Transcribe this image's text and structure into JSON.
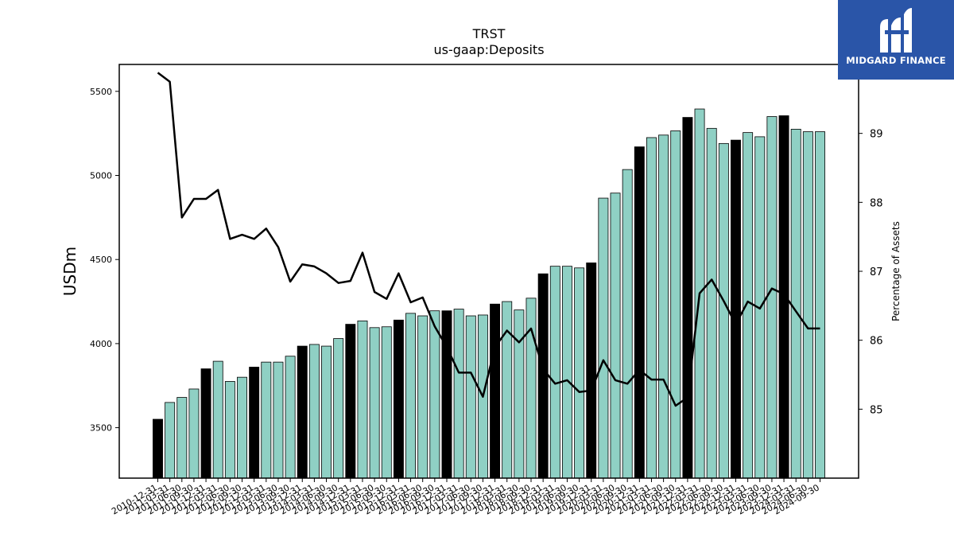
{
  "chart_data": {
    "type": "bar+line",
    "title": "TRST",
    "subtitle": "us-gaap:Deposits",
    "ylabel": "USDm",
    "y2label": "Percentage of Assets",
    "ylim": [
      3200,
      5660
    ],
    "y2lim": [
      84.0,
      90.0
    ],
    "yticks": [
      3500,
      4000,
      4500,
      5000,
      5500
    ],
    "y2ticks": [
      85,
      86,
      87,
      88,
      89
    ],
    "categories": [
      "2010-12-31",
      "2011-03-31",
      "2011-06-30",
      "2011-09-30",
      "2011-12-31",
      "2012-03-31",
      "2012-06-30",
      "2012-09-30",
      "2012-12-31",
      "2013-03-31",
      "2013-06-30",
      "2013-09-30",
      "2013-12-31",
      "2014-03-31",
      "2014-06-30",
      "2014-09-30",
      "2014-12-31",
      "2015-03-31",
      "2015-06-30",
      "2015-09-30",
      "2015-12-31",
      "2016-03-31",
      "2016-06-30",
      "2016-09-30",
      "2016-12-31",
      "2017-03-31",
      "2017-06-30",
      "2017-09-30",
      "2017-12-31",
      "2018-03-31",
      "2018-06-30",
      "2018-09-30",
      "2018-12-31",
      "2019-03-31",
      "2019-06-30",
      "2019-09-30",
      "2019-12-31",
      "2020-03-31",
      "2020-06-30",
      "2020-09-30",
      "2020-12-31",
      "2021-03-31",
      "2021-06-30",
      "2021-09-30",
      "2021-12-31",
      "2022-03-31",
      "2022-06-30",
      "2022-09-30",
      "2022-12-31",
      "2023-03-31",
      "2023-06-30",
      "2023-09-30",
      "2023-12-31",
      "2024-03-31",
      "2024-06-30",
      "2024-09-30"
    ],
    "series": [
      {
        "kind": "bar",
        "values": [
          3550,
          3650,
          3680,
          3730,
          3850,
          3895,
          3775,
          3800,
          3860,
          3890,
          3890,
          3925,
          3985,
          3995,
          3985,
          4030,
          4115,
          4135,
          4095,
          4100,
          4140,
          4180,
          4165,
          4195,
          4195,
          4205,
          4165,
          4170,
          4235,
          4250,
          4200,
          4270,
          4415,
          4460,
          4460,
          4450,
          4480,
          4865,
          4895,
          5035,
          5170,
          5225,
          5240,
          5265,
          5345,
          5395,
          5280,
          5190,
          5210,
          5255,
          5230,
          5350,
          5355,
          5275,
          5260,
          5260
        ],
        "highlight_color": "#000000",
        "color": "#8fd0c4",
        "highlight_every": "year-end (Dec 31)"
      },
      {
        "kind": "line",
        "axis": "right",
        "values": [
          89.88,
          89.75,
          87.78,
          88.05,
          88.05,
          88.18,
          87.47,
          87.53,
          87.47,
          87.62,
          87.35,
          86.85,
          87.1,
          87.07,
          86.97,
          86.83,
          86.86,
          87.27,
          86.7,
          86.6,
          86.97,
          86.55,
          86.62,
          86.2,
          85.9,
          85.53,
          85.53,
          85.18,
          85.9,
          86.14,
          85.97,
          86.17,
          85.58,
          85.37,
          85.42,
          85.25,
          85.27,
          85.71,
          85.42,
          85.37,
          85.57,
          85.43,
          85.43,
          85.05,
          85.17,
          86.68,
          86.88,
          86.57,
          86.23,
          86.56,
          86.46,
          86.75,
          86.67,
          86.42,
          86.17,
          86.17
        ]
      }
    ],
    "colors": {
      "bar": "#8fd0c4",
      "bar_yearend": "#000000",
      "line": "#000000"
    }
  },
  "logo": {
    "text": "MIDGARD FINANCE",
    "background": "#2a55a8"
  }
}
